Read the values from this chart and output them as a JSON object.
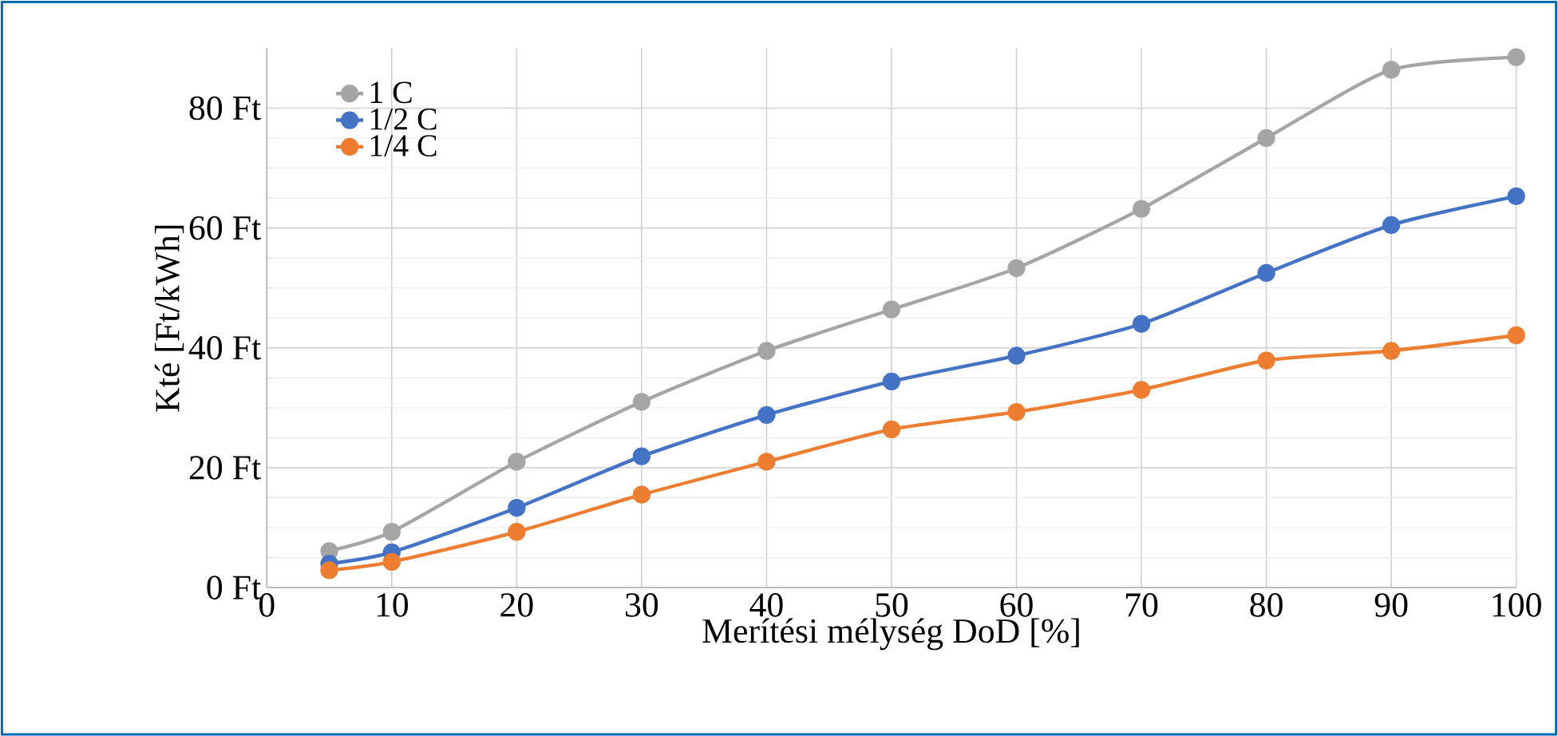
{
  "chart_data": {
    "type": "line",
    "xlabel": "Merítési mélység DoD [%]",
    "ylabel": "Kté [Ft/kWh]",
    "x": [
      5,
      10,
      20,
      30,
      40,
      50,
      60,
      70,
      80,
      90,
      100
    ],
    "series": [
      {
        "name": "1 C",
        "color": "#a5a5a5",
        "values": [
          6.1,
          9.3,
          21,
          31,
          39.5,
          46.4,
          53.3,
          63.2,
          75,
          86.4,
          88.5
        ]
      },
      {
        "name": "1/2 C",
        "color": "#4472c4",
        "values": [
          4,
          5.9,
          13.3,
          21.9,
          28.8,
          34.4,
          38.7,
          44,
          52.5,
          60.5,
          65.3
        ]
      },
      {
        "name": "1/4 C",
        "color": "#ed7d31",
        "values": [
          2.9,
          4.3,
          9.3,
          15.5,
          21,
          26.4,
          29.3,
          33,
          37.9,
          39.5,
          42.1
        ]
      }
    ],
    "xlim": [
      0,
      100
    ],
    "xticks": [
      0,
      10,
      20,
      30,
      40,
      50,
      60,
      70,
      80,
      90,
      100
    ],
    "ylim": [
      0,
      90
    ],
    "yticks": [
      {
        "value": 0,
        "label": "0 Ft"
      },
      {
        "value": 20,
        "label": "20 Ft"
      },
      {
        "value": 40,
        "label": "40 Ft"
      },
      {
        "value": 60,
        "label": "60 Ft"
      },
      {
        "value": 80,
        "label": "80 Ft"
      }
    ],
    "grid": true,
    "legend": "top left",
    "marker": "circle",
    "line_style": "solid"
  }
}
